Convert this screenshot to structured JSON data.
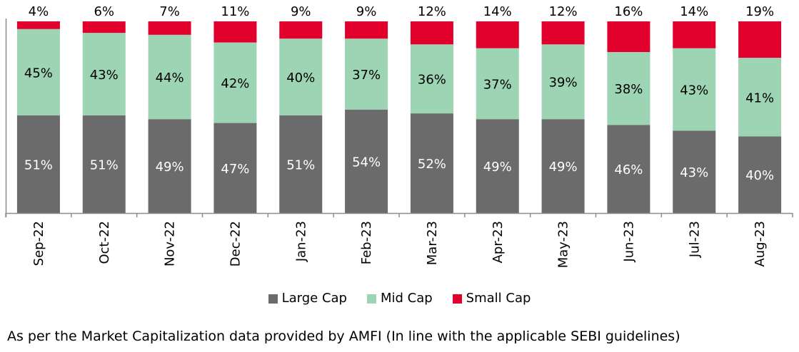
{
  "chart_data": {
    "type": "bar",
    "stacked": true,
    "categories": [
      "Sep-22",
      "Oct-22",
      "Nov-22",
      "Dec-22",
      "Jan-23",
      "Feb-23",
      "Mar-23",
      "Apr-23",
      "May-23",
      "Jun-23",
      "Jul-23",
      "Aug-23"
    ],
    "series": [
      {
        "name": "Large Cap",
        "color": "#6b6b6b",
        "values": [
          51,
          51,
          49,
          47,
          51,
          54,
          52,
          49,
          49,
          46,
          43,
          40
        ],
        "labels": [
          "51%",
          "51%",
          "49%",
          "47%",
          "51%",
          "54%",
          "52%",
          "49%",
          "49%",
          "46%",
          "43%",
          "40%"
        ]
      },
      {
        "name": "Mid Cap",
        "color": "#9dd4b3",
        "values": [
          45,
          43,
          44,
          42,
          40,
          37,
          36,
          37,
          39,
          38,
          43,
          41
        ],
        "labels": [
          "45%",
          "43%",
          "44%",
          "42%",
          "40%",
          "37%",
          "36%",
          "37%",
          "39%",
          "38%",
          "43%",
          "41%"
        ]
      },
      {
        "name": "Small Cap",
        "color": "#e0002b",
        "values": [
          4,
          6,
          7,
          11,
          9,
          9,
          12,
          14,
          12,
          16,
          14,
          19
        ],
        "labels": [
          "4%",
          "6%",
          "7%",
          "11%",
          "9%",
          "9%",
          "12%",
          "14%",
          "12%",
          "16%",
          "14%",
          "19%"
        ]
      }
    ],
    "ylim": [
      0,
      100
    ],
    "title": "",
    "xlabel": "",
    "ylabel": "",
    "grid": false,
    "legend_position": "bottom"
  },
  "legend": {
    "large_cap": "Large Cap",
    "mid_cap": "Mid Cap",
    "small_cap": "Small Cap"
  },
  "footnote": "As per the Market Capitalization data provided by AMFI (In line with the applicable SEBI guidelines)"
}
